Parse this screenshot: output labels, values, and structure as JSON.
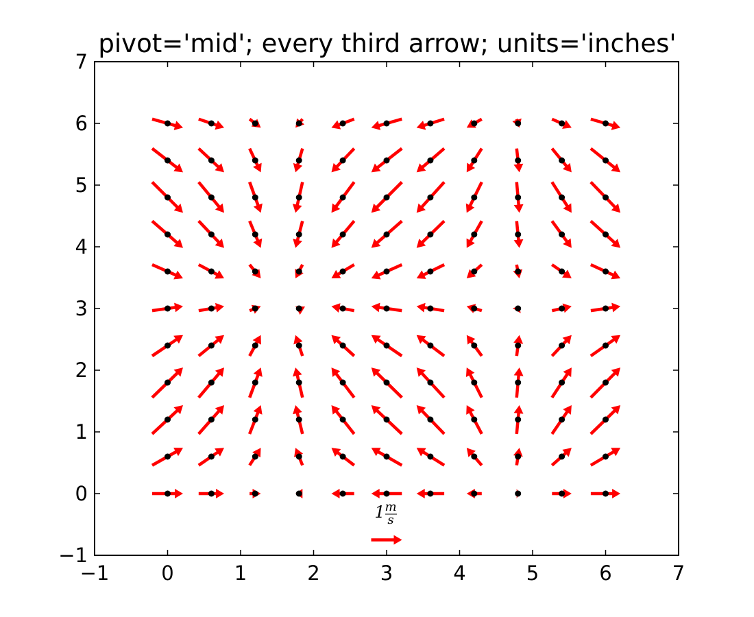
{
  "chart_data": {
    "type": "quiver",
    "title": "pivot='mid'; every third arrow; units='inches'",
    "xlabel": "",
    "ylabel": "",
    "xlim": [
      -1,
      7
    ],
    "ylim": [
      -1,
      7
    ],
    "xticks": [
      "−1",
      "0",
      "1",
      "2",
      "3",
      "4",
      "5",
      "6",
      "7"
    ],
    "yticks": [
      "−1",
      "0",
      "1",
      "2",
      "3",
      "4",
      "5",
      "6",
      "7"
    ],
    "grid": false,
    "pivot": "mid",
    "arrow_color": "#ff0000",
    "point_color": "#000000",
    "x": [
      0,
      0.6,
      1.2,
      1.8,
      2.4,
      3.0,
      3.6,
      4.2,
      4.8,
      5.4,
      6.0
    ],
    "y": [
      0,
      0.6,
      1.2,
      1.8,
      2.4,
      3.0,
      3.6,
      4.2,
      4.8,
      5.4,
      6.0
    ],
    "field": {
      "u": "cos(x)",
      "v": "sin(y)"
    },
    "quiver_key": {
      "label_number": "1",
      "label_num": "m",
      "label_den": "s",
      "value": 1,
      "x": 3,
      "y": -0.75
    }
  }
}
